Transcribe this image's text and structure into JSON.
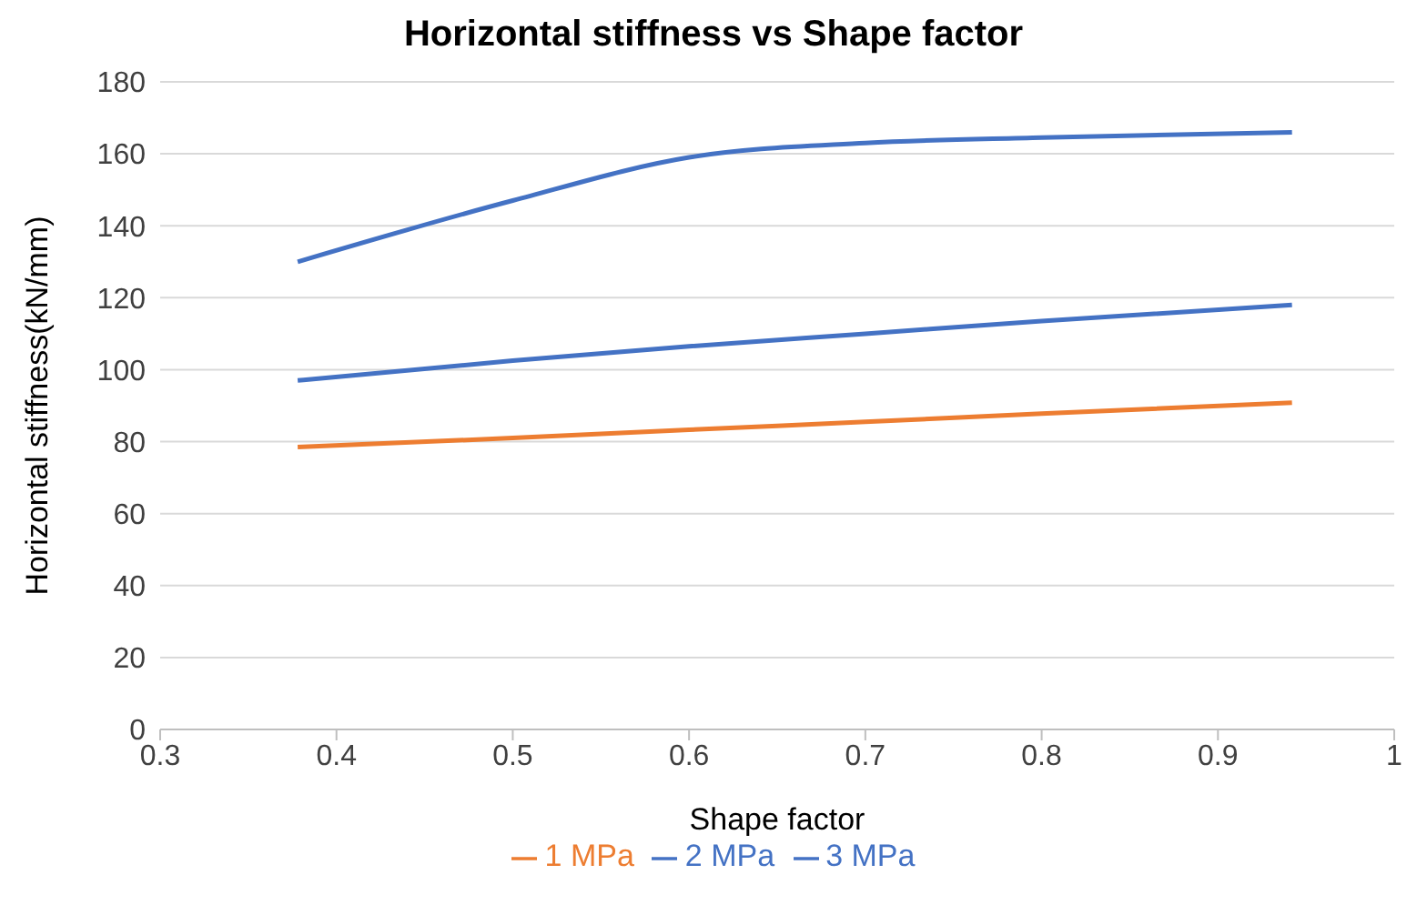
{
  "chart_data": {
    "type": "line",
    "title": "Horizontal stiffness vs Shape factor",
    "xlabel": "Shape factor",
    "ylabel": "Horizontal stiffness(kN/mm)",
    "x": [
      0.378,
      0.5,
      0.6,
      0.7,
      0.8,
      0.942
    ],
    "series": [
      {
        "name": "1 MPa",
        "color": "#ed7d31",
        "values": [
          78.5,
          81,
          83.3,
          85.5,
          87.8,
          90.8
        ]
      },
      {
        "name": "2 MPa",
        "color": "#4472c4",
        "values": [
          97,
          102.5,
          106.5,
          110,
          113.5,
          118
        ]
      },
      {
        "name": "3 MPa",
        "color": "#4472c4",
        "values": [
          130,
          147,
          159,
          163,
          164.5,
          166
        ]
      }
    ],
    "xlim": [
      0.3,
      1
    ],
    "xticks": [
      0.3,
      0.4,
      0.5,
      0.6,
      0.7,
      0.8,
      0.9,
      1
    ],
    "ylim": [
      0,
      180
    ],
    "yticks": [
      0,
      20,
      40,
      60,
      80,
      100,
      120,
      140,
      160,
      180
    ],
    "grid": "y",
    "legend": "bottom",
    "marker": "none",
    "line_style": "solid"
  }
}
